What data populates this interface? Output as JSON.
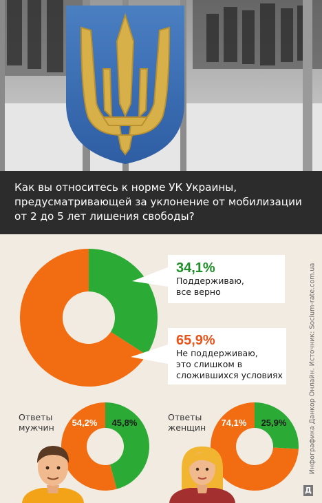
{
  "question": "Как вы относитесь к норме УК Украины, предусматривающей за уклонение от мобилизации от 2 до 5 лет лишения свободы?",
  "colors": {
    "support": "#2bab35",
    "oppose": "#f26c11",
    "support_text": "#1f8e28",
    "oppose_text": "#e8531a",
    "header_bg": "#2c2c2c",
    "page_bg": "#f2ebe1"
  },
  "chart_data": [
    {
      "type": "pie",
      "categories": [
        "Поддерживаю, все верно",
        "Не поддерживаю, это слишком в сложившихся условиях"
      ],
      "values": [
        34.1,
        65.9
      ],
      "labels": [
        "34,1%",
        "65,9%"
      ]
    },
    {
      "type": "pie",
      "title": "Ответы мужчин",
      "categories": [
        "Не поддерживаю",
        "Поддерживаю"
      ],
      "values": [
        54.2,
        45.8
      ],
      "labels": [
        "54,2%",
        "45,8%"
      ]
    },
    {
      "type": "pie",
      "title": "Ответы женщин",
      "categories": [
        "Не поддерживаю",
        "Поддерживаю"
      ],
      "values": [
        74.1,
        25.9
      ],
      "labels": [
        "74,1%",
        "25,9%"
      ]
    }
  ],
  "callouts": {
    "support": {
      "pct": "34,1%",
      "line1": "Поддерживаю,",
      "line2": "все верно"
    },
    "oppose": {
      "pct": "65,9%",
      "line1": "Не поддерживаю,",
      "line2": "это слишком в",
      "line3": "сложившихся условиях"
    }
  },
  "groups": {
    "men": {
      "line1": "Ответы",
      "line2": "мужчин"
    },
    "women": {
      "line1": "Ответы",
      "line2": "женщин"
    }
  },
  "credit": "Инфографика Данкор Онлайн. Источник: Socium-rate.com.ua",
  "logo": "Д"
}
